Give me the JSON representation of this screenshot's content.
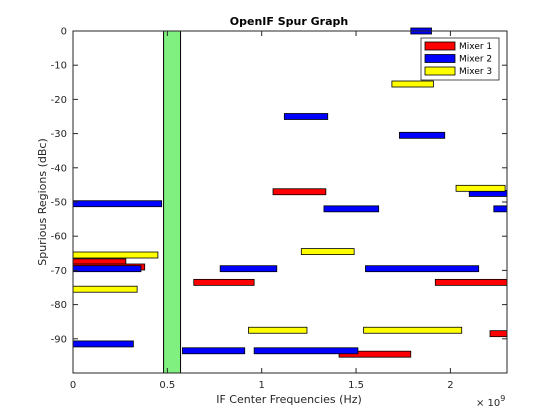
{
  "chart_data": {
    "type": "bar",
    "title": "OpenIF Spur Graph",
    "xlabel": "IF Center Frequencies (Hz)",
    "ylabel": "Spurious Regions (dBc)",
    "x_exponent_label": "× 10",
    "x_exponent_power": "9",
    "xlim": [
      0,
      2.3
    ],
    "ylim": [
      -100,
      0
    ],
    "xticks": [
      0,
      0.5,
      1,
      1.5,
      2
    ],
    "xtick_labels": [
      "0",
      "0.5",
      "1",
      "1.5",
      "2"
    ],
    "yticks": [
      0,
      -10,
      -20,
      -30,
      -40,
      -50,
      -60,
      -70,
      -80,
      -90
    ],
    "ytick_labels": [
      "0",
      "-10",
      "-20",
      "-30",
      "-40",
      "-50",
      "-60",
      "-70",
      "-80",
      "-90"
    ],
    "grid": false,
    "legend_position": "top-right",
    "if_band": {
      "x_start": 0.48,
      "x_end": 0.57,
      "y_top": 0,
      "y_bottom": -100,
      "color": "#80f080"
    },
    "series": [
      {
        "name": "Mixer 1",
        "color": "#ff0000",
        "bars": [
          {
            "x_start": 0.0,
            "x_end": 0.28,
            "level": -67.5
          },
          {
            "x_start": 0.0,
            "x_end": 0.38,
            "level": -69.0
          },
          {
            "x_start": 1.06,
            "x_end": 1.34,
            "level": -47.0
          },
          {
            "x_start": 0.64,
            "x_end": 0.96,
            "level": -73.5
          },
          {
            "x_start": 1.41,
            "x_end": 1.79,
            "level": -94.5
          },
          {
            "x_start": 1.92,
            "x_end": 2.3,
            "level": -73.5
          },
          {
            "x_start": 2.21,
            "x_end": 2.3,
            "level": -88.5
          }
        ]
      },
      {
        "name": "Mixer 2",
        "color": "#0000ff",
        "bars": [
          {
            "x_start": 1.79,
            "x_end": 1.9,
            "level": 0.0
          },
          {
            "x_start": 1.12,
            "x_end": 1.35,
            "level": -25.0
          },
          {
            "x_start": 1.73,
            "x_end": 1.97,
            "level": -30.5
          },
          {
            "x_start": 0.0,
            "x_end": 0.47,
            "level": -50.5
          },
          {
            "x_start": 1.33,
            "x_end": 1.62,
            "level": -52.0
          },
          {
            "x_start": 2.1,
            "x_end": 2.3,
            "level": -47.5
          },
          {
            "x_start": 2.23,
            "x_end": 2.3,
            "level": -52.0
          },
          {
            "x_start": 0.0,
            "x_end": 0.36,
            "level": -69.5
          },
          {
            "x_start": 0.78,
            "x_end": 1.08,
            "level": -69.5
          },
          {
            "x_start": 1.55,
            "x_end": 2.15,
            "level": -69.5
          },
          {
            "x_start": 0.0,
            "x_end": 0.32,
            "level": -91.5
          },
          {
            "x_start": 0.58,
            "x_end": 0.91,
            "level": -93.5
          },
          {
            "x_start": 0.96,
            "x_end": 1.51,
            "level": -93.5
          }
        ]
      },
      {
        "name": "Mixer 3",
        "color": "#ffff00",
        "bars": [
          {
            "x_start": 1.69,
            "x_end": 1.91,
            "level": -15.5
          },
          {
            "x_start": 2.03,
            "x_end": 2.29,
            "level": -46.0
          },
          {
            "x_start": 0.0,
            "x_end": 0.45,
            "level": -65.5
          },
          {
            "x_start": 1.21,
            "x_end": 1.49,
            "level": -64.5
          },
          {
            "x_start": 0.0,
            "x_end": 0.34,
            "level": -75.5
          },
          {
            "x_start": 0.93,
            "x_end": 1.24,
            "level": -87.5
          },
          {
            "x_start": 1.54,
            "x_end": 2.06,
            "level": -87.5
          }
        ]
      }
    ]
  }
}
